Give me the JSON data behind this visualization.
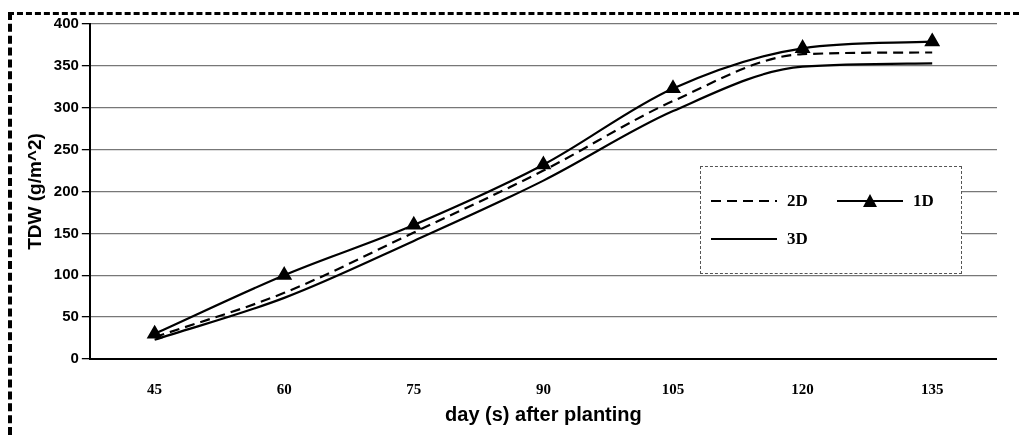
{
  "chart_data": {
    "type": "line",
    "xlabel": "day (s) after planting",
    "ylabel": "TDW (g/m^2)",
    "categories": [
      "45",
      "60",
      "75",
      "90",
      "105",
      "120",
      "135"
    ],
    "series": [
      {
        "name": "2D",
        "color": "#000000",
        "line_style": "dashed",
        "marker": "none",
        "values": [
          26,
          79,
          151,
          225,
          308,
          364,
          366
        ]
      },
      {
        "name": "1D",
        "color": "#000000",
        "line_style": "solid",
        "marker": "triangle",
        "values": [
          30,
          100,
          160,
          232,
          323,
          371,
          379
        ]
      },
      {
        "name": "3D",
        "color": "#000000",
        "line_style": "solid",
        "marker": "none",
        "values": [
          23,
          73,
          141,
          213,
          296,
          349,
          353
        ]
      }
    ],
    "ylim": [
      0,
      400
    ],
    "yticks": [
      0,
      50,
      100,
      150,
      200,
      250,
      300,
      350,
      400
    ],
    "grid": "y",
    "legend": "right"
  }
}
